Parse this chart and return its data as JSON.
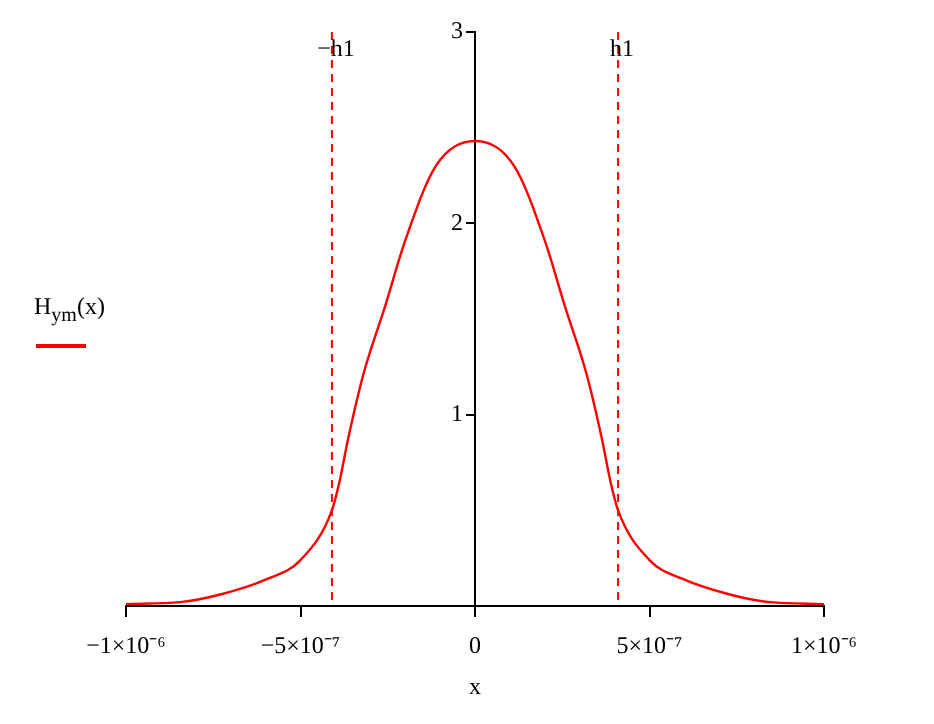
{
  "chart_data": {
    "type": "line",
    "xlabel": "x",
    "ylabel": "H$_{ym}$(x)",
    "series": [
      {
        "color": "#ff0000",
        "x": [
          -1e-06,
          -8.45e-07,
          -7.3e-07,
          -5.97e-07,
          -5e-07,
          -4.1e-07,
          -3.87e-07,
          -3.64e-07,
          -3.2e-07,
          -2.57e-07,
          -2e-07,
          -1.12e-07,
          0,
          1.12e-07,
          2e-07,
          2.57e-07,
          3.2e-07,
          3.64e-07,
          3.87e-07,
          4.1e-07,
          5e-07,
          5.97e-07,
          7.3e-07,
          8.45e-07,
          1e-06
        ],
        "values": [
          0.01,
          0.02,
          0.06,
          0.14,
          0.24,
          0.5,
          0.66,
          0.87,
          1.21,
          1.57,
          1.91,
          2.3,
          2.43,
          2.3,
          1.91,
          1.57,
          1.21,
          0.87,
          0.66,
          0.5,
          0.24,
          0.14,
          0.06,
          0.02,
          0.01
        ]
      }
    ],
    "xlim": [
      -1e-06,
      1e-06
    ],
    "ylim": [
      0,
      3
    ],
    "xticks": [
      {
        "value": -1e-06,
        "label": "−1×10⁻⁶"
      },
      {
        "value": -5e-07,
        "label": "−5×10⁻⁷"
      },
      0,
      {
        "value": 5e-07,
        "label": "5×10⁻⁷"
      },
      {
        "value": 1e-06,
        "label": "1×10⁻⁶"
      }
    ],
    "yticks": [
      1,
      2,
      3
    ],
    "ref_lines": [
      {
        "axis": "x",
        "value": -4.1e-07,
        "label": "−h1",
        "color": "#ff0000",
        "line_style": "dashed"
      },
      {
        "axis": "x",
        "value": 4.1e-07,
        "label": "h1",
        "color": "#ff0000",
        "line_style": "dashed"
      }
    ],
    "grid": false,
    "legend": false,
    "marker": "none",
    "line_style": "solid"
  }
}
